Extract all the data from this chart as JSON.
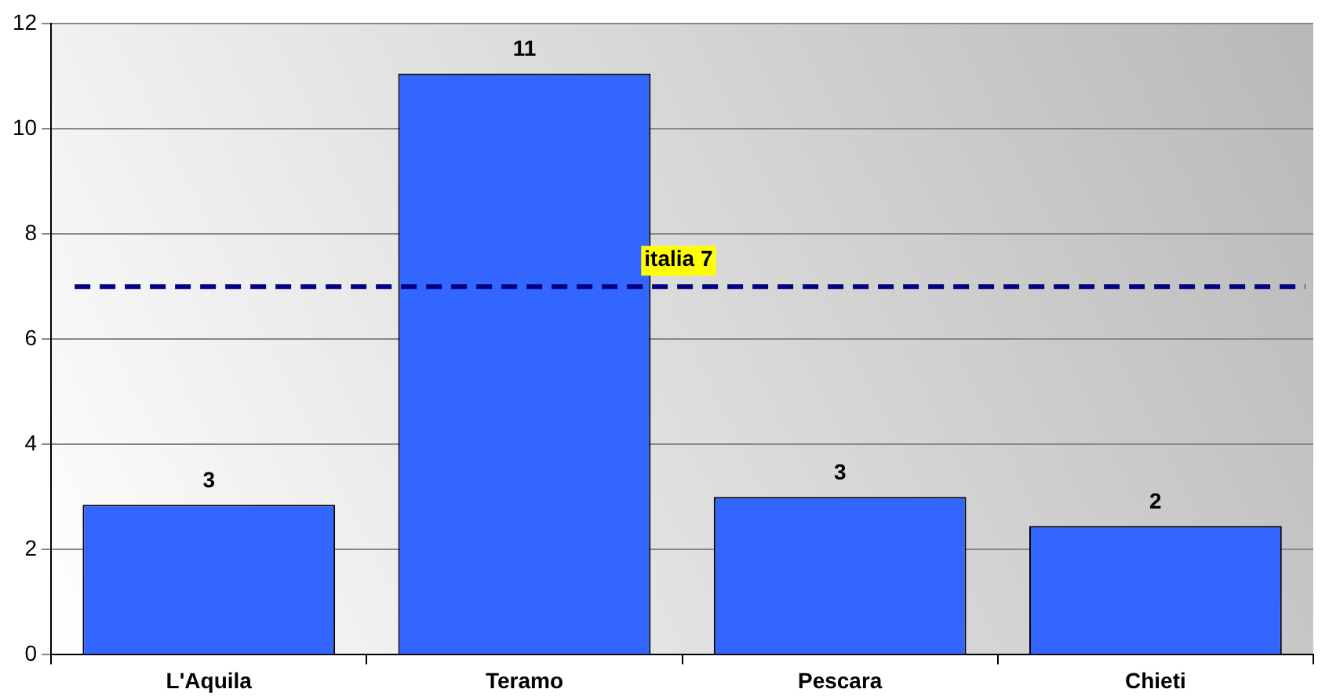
{
  "chart_data": {
    "type": "bar",
    "categories": [
      "L'Aquila",
      "Teramo",
      "Pescara",
      "Chieti"
    ],
    "values": [
      2.85,
      11.05,
      3.0,
      2.45
    ],
    "value_labels": [
      "3",
      "11",
      "3",
      "2"
    ],
    "color": "#3366ff",
    "ylim": [
      0,
      12
    ],
    "yticks": [
      0,
      2,
      4,
      6,
      8,
      10,
      12
    ],
    "grid": "y",
    "ref_lines": [
      {
        "axis": "y",
        "value": 7,
        "label": "italia 7",
        "color": "#000080",
        "line_style": "dashed"
      }
    ]
  }
}
